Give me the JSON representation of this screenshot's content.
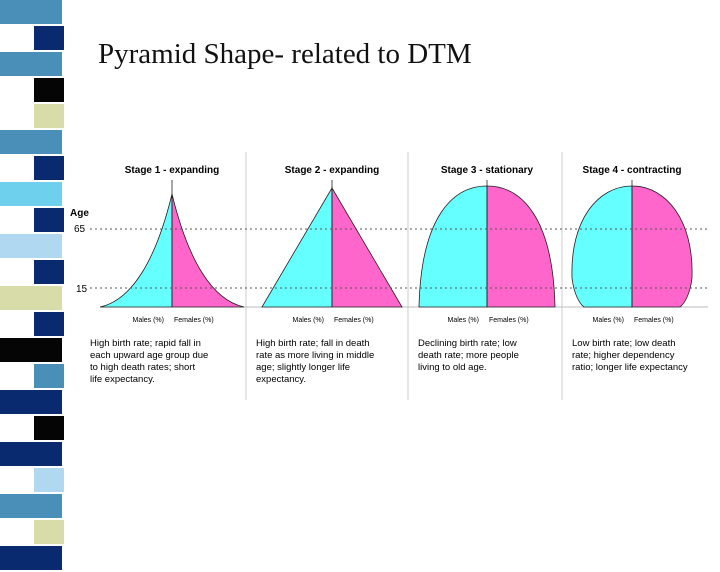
{
  "slide": {
    "title": "Pyramid Shape- related to DTM",
    "colors": {
      "males": "#66ffff",
      "females": "#ff66cc",
      "strip_primary": "#0a2a70",
      "strip_secondary": "#4a8fb8"
    }
  },
  "diagram": {
    "axis": {
      "title": "Age",
      "ticks": [
        "65",
        "15"
      ]
    },
    "stages": [
      {
        "label": "Stage 1 - expanding",
        "shape": "concave-peak",
        "males_label": "Males (%)",
        "females_label": "Females (%)",
        "description": [
          "High birth rate; rapid fall in",
          "each upward age group due",
          "to high death rates; short",
          "life expectancy."
        ]
      },
      {
        "label": "Stage 2 - expanding",
        "shape": "triangle",
        "males_label": "Males (%)",
        "females_label": "Females (%)",
        "description": [
          "High birth rate; fall in death",
          "rate as more living in middle",
          "age; slightly longer life",
          "expectancy."
        ]
      },
      {
        "label": "Stage 3 - stationary",
        "shape": "dome",
        "males_label": "Males (%)",
        "females_label": "Females (%)",
        "description": [
          "Declining birth rate; low",
          "death rate; more people",
          "living to old age."
        ]
      },
      {
        "label": "Stage 4 - contracting",
        "shape": "round-top",
        "males_label": "Males (%)",
        "females_label": "Females (%)",
        "description": [
          "Low birth rate; low death",
          "rate; higher dependency",
          "ratio; longer life expectancy"
        ]
      }
    ]
  }
}
